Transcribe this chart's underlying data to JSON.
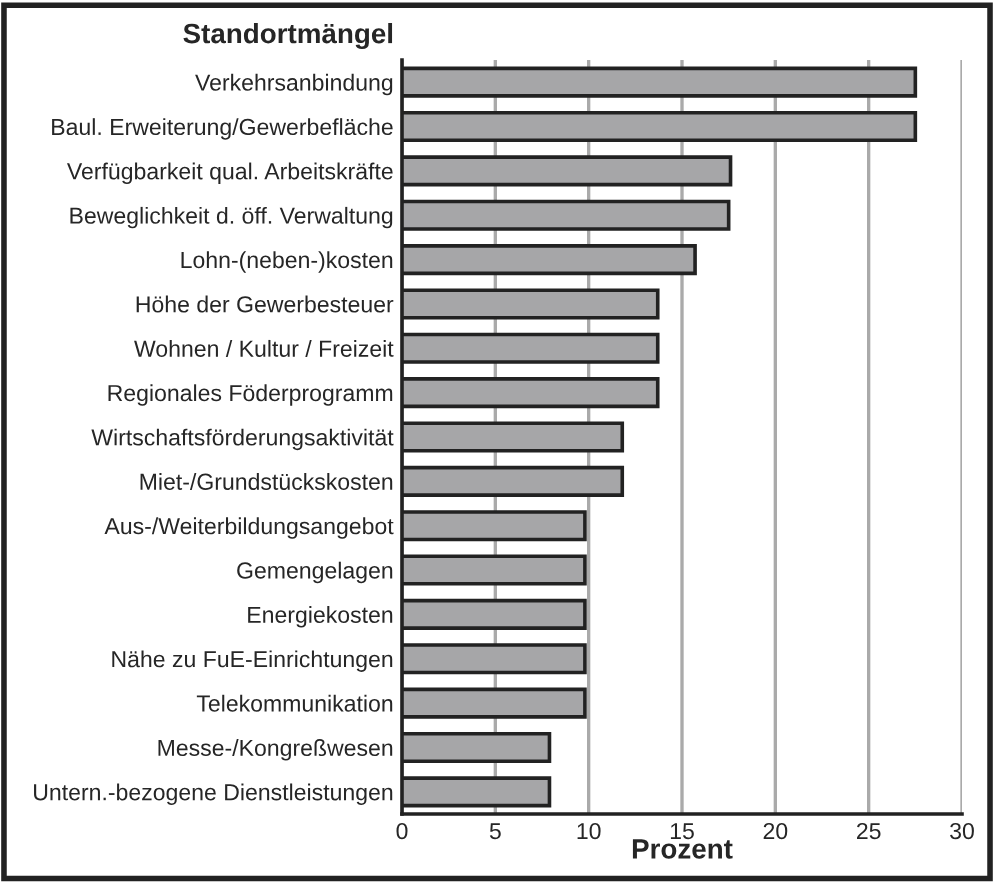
{
  "chart_data": {
    "type": "bar",
    "orientation": "horizontal",
    "title": "Standortmängel",
    "xlabel": "Prozent",
    "categories": [
      "Verkehrsanbindung",
      "Baul. Erweiterung/Gewerbefläche",
      "Verfügbarkeit qual. Arbeitskräfte",
      "Beweglichkeit d. öff. Verwaltung",
      "Lohn-(neben-)kosten",
      "Höhe der Gewerbesteuer",
      "Wohnen / Kultur / Freizeit",
      "Regionales Föderprogramm",
      "Wirtschaftsförderungsaktivität",
      "Miet-/Grundstückskosten",
      "Aus-/Weiterbildungsangebot",
      "Gemengelagen",
      "Energiekosten",
      "Nähe zu FuE-Einrichtungen",
      "Telekommunikation",
      "Messe-/Kongreßwesen",
      "Untern.-bezogene Dienstleistungen"
    ],
    "values": [
      27.5,
      27.5,
      17.6,
      17.5,
      15.7,
      13.7,
      13.7,
      13.7,
      11.8,
      11.8,
      9.8,
      9.8,
      9.8,
      9.8,
      9.8,
      7.9,
      7.9
    ],
    "color": "#a6a6a8",
    "xlim": [
      0,
      30
    ],
    "xticks": [
      0,
      5,
      10,
      15,
      20,
      25,
      30
    ],
    "grid": "x"
  }
}
